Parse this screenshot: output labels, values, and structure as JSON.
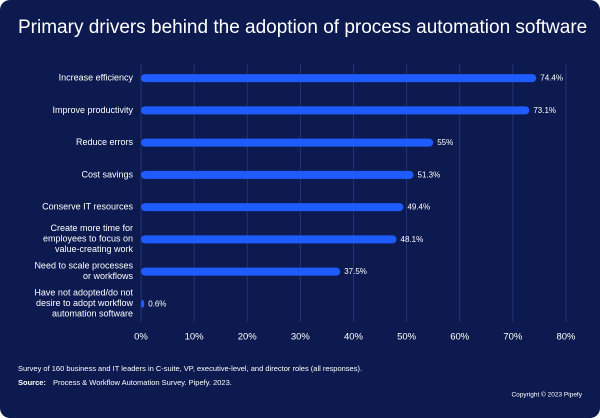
{
  "chart_data": {
    "type": "hbar",
    "title": "Primary drivers behind the adoption of process automation software",
    "categories": [
      "Increase efficiency",
      "Improve productivity",
      "Reduce errors",
      "Cost savings",
      "Conserve IT resources",
      "Create more time for\nemployees to focus on\nvalue-creating work",
      "Need to scale processes\nor workflows",
      "Have not adopted/do not\ndesire to adopt workflow\nautomation software"
    ],
    "values": [
      74.4,
      73.1,
      55,
      51.3,
      49.4,
      48.1,
      37.5,
      0.6
    ],
    "value_labels": [
      "74.4%",
      "73.1%",
      "55%",
      "51.3%",
      "49.4%",
      "48.1%",
      "37.5%",
      "0.6%"
    ],
    "color": "#1f5cff",
    "xlim": [
      0,
      80
    ],
    "xticks": [
      {
        "value": 0,
        "label": "0%"
      },
      {
        "value": 10,
        "label": "10%"
      },
      {
        "value": 20,
        "label": "20%"
      },
      {
        "value": 30,
        "label": "30%"
      },
      {
        "value": 40,
        "label": "40%"
      },
      {
        "value": 50,
        "label": "50%"
      },
      {
        "value": 60,
        "label": "60%"
      },
      {
        "value": 70,
        "label": "70%"
      },
      {
        "value": 80,
        "label": "80%"
      }
    ],
    "grid": true,
    "note": "Survey of 160 business and IT leaders in C-suite, VP, executive-level, and director roles (all responses).",
    "source_label": "Source:",
    "source": "Process & Workflow Automation Survey. Pipefy. 2023.",
    "copyright": "Copyright © 2023 Pipefy"
  }
}
